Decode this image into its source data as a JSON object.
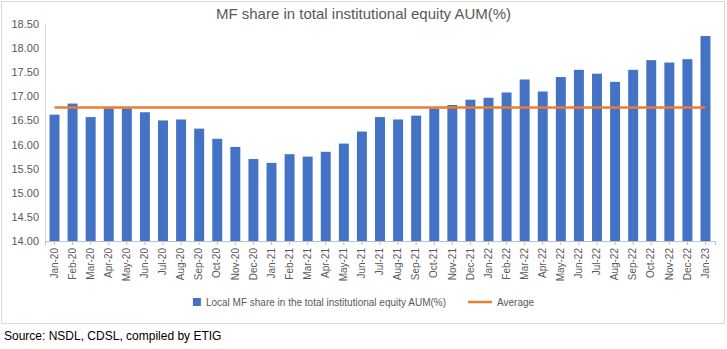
{
  "chart_data": {
    "type": "bar",
    "title": "MF share in total institutional equity AUM(%)",
    "annotations": [
      "Source: NSDL, CDSL, compiled by ETIG"
    ],
    "categories": [
      "Jan-20",
      "Feb-20",
      "Mar-20",
      "Apr-20",
      "May-20",
      "Jun-20",
      "Jul-20",
      "Aug-20",
      "Sep-20",
      "Oct-20",
      "Nov-20",
      "Dec-20",
      "Jan-21",
      "Feb-21",
      "Mar-21",
      "Apr-21",
      "May-21",
      "Jun-21",
      "Jul-21",
      "Aug-21",
      "Sep-21",
      "Oct-21",
      "Nov-21",
      "Dec-21",
      "Jan-22",
      "Feb-22",
      "Mar-22",
      "Apr-22",
      "May-22",
      "Jun-22",
      "Jul-22",
      "Aug-22",
      "Sep-22",
      "Oct-22",
      "Nov-22",
      "Dec-22",
      "Jan-23"
    ],
    "series": [
      {
        "name": "Local MF share in the total institutional equity AUM(%)",
        "type": "bar",
        "color": "#4472c4",
        "values": [
          16.62,
          16.85,
          16.57,
          16.75,
          16.75,
          16.67,
          16.5,
          16.52,
          16.33,
          16.12,
          15.95,
          15.7,
          15.62,
          15.8,
          15.75,
          15.85,
          16.02,
          16.27,
          16.57,
          16.52,
          16.6,
          16.75,
          16.82,
          16.93,
          16.97,
          17.08,
          17.35,
          17.1,
          17.4,
          17.55,
          17.47,
          17.3,
          17.55,
          17.75,
          17.7,
          17.77,
          18.25
        ]
      },
      {
        "name": "Average",
        "type": "line",
        "color": "#ed7d31",
        "values": [
          16.77,
          16.77,
          16.77,
          16.77,
          16.77,
          16.77,
          16.77,
          16.77,
          16.77,
          16.77,
          16.77,
          16.77,
          16.77,
          16.77,
          16.77,
          16.77,
          16.77,
          16.77,
          16.77,
          16.77,
          16.77,
          16.77,
          16.77,
          16.77,
          16.77,
          16.77,
          16.77,
          16.77,
          16.77,
          16.77,
          16.77,
          16.77,
          16.77,
          16.77,
          16.77,
          16.77,
          16.77
        ]
      }
    ],
    "ylim": [
      14,
      18.5
    ],
    "yticks": [
      {
        "value": 14,
        "label": "14.00"
      },
      {
        "value": 14.5,
        "label": "14.50"
      },
      {
        "value": 15,
        "label": "15.00"
      },
      {
        "value": 15.5,
        "label": "15.50"
      },
      {
        "value": 16,
        "label": "16.00"
      },
      {
        "value": 16.5,
        "label": "16.50"
      },
      {
        "value": 17,
        "label": "17.00"
      },
      {
        "value": 17.5,
        "label": "17.50"
      },
      {
        "value": 18,
        "label": "18.00"
      },
      {
        "value": 18.5,
        "label": "18.50"
      }
    ],
    "grid": false,
    "legend": "bottom"
  }
}
